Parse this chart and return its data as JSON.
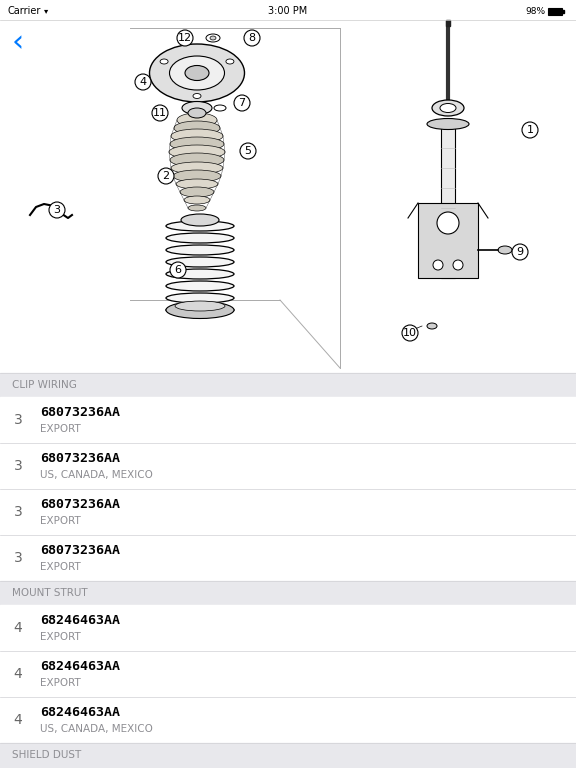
{
  "bg_color": "#ffffff",
  "list_section_bg": "#e8e8ec",
  "list_row_bg": "#ffffff",
  "divider_color": "#d0d0d5",
  "section_text_color": "#8e8e93",
  "part_number_color": "#000000",
  "subtitle_color": "#8e8e93",
  "sections": [
    {
      "title": "CLIP WIRING",
      "items": [
        {
          "ref": "3",
          "part": "68073236AA",
          "desc": "EXPORT"
        },
        {
          "ref": "3",
          "part": "68073236AA",
          "desc": "US, CANADA, MEXICO"
        },
        {
          "ref": "3",
          "part": "68073236AA",
          "desc": "EXPORT"
        },
        {
          "ref": "3",
          "part": "68073236AA",
          "desc": "EXPORT"
        }
      ]
    },
    {
      "title": "MOUNT STRUT",
      "items": [
        {
          "ref": "4",
          "part": "68246463AA",
          "desc": "EXPORT"
        },
        {
          "ref": "4",
          "part": "68246463AA",
          "desc": "EXPORT"
        },
        {
          "ref": "4",
          "part": "68246463AA",
          "desc": "US, CANADA, MEXICO"
        }
      ]
    },
    {
      "title": "SHIELD DUST",
      "items": []
    }
  ],
  "back_arrow": "‹"
}
